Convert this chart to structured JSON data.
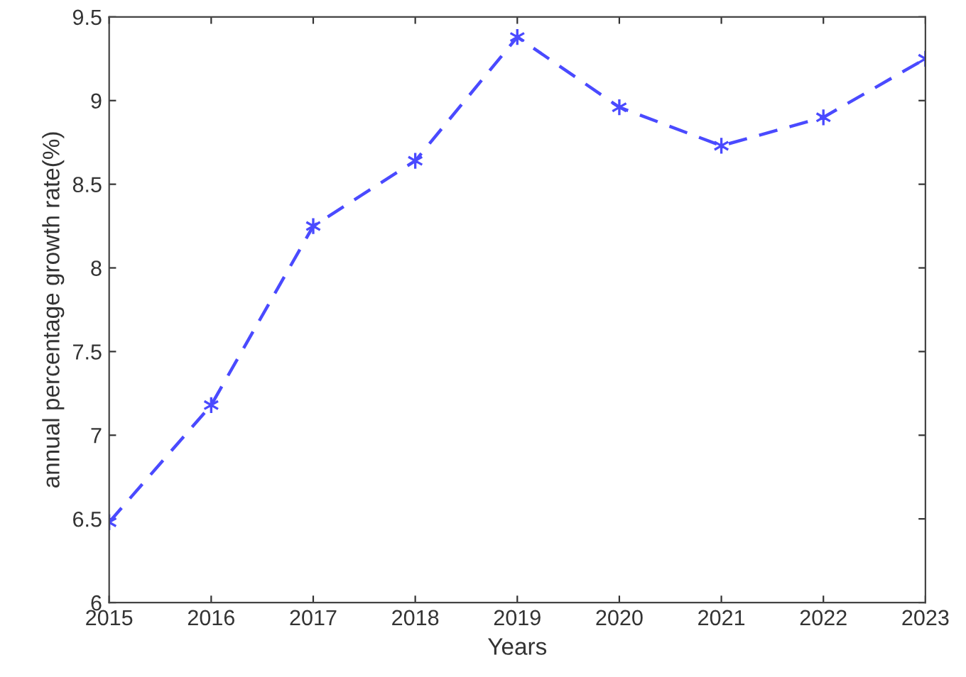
{
  "chart_data": {
    "type": "line",
    "xlabel": "Years",
    "ylabel": "annual percentage growth rate(%)",
    "x": [
      2015,
      2016,
      2017,
      2018,
      2019,
      2020,
      2021,
      2022,
      2023
    ],
    "series": [
      {
        "color": "#4a4aff",
        "values": [
          6.48,
          7.18,
          8.25,
          8.64,
          9.38,
          8.96,
          8.73,
          8.9,
          9.25
        ]
      }
    ],
    "xlim": [
      2015,
      2023
    ],
    "xticks": [
      2015,
      2016,
      2017,
      2018,
      2019,
      2020,
      2021,
      2022,
      2023
    ],
    "ylim": [
      6,
      9.5
    ],
    "yticks": [
      6,
      6.5,
      7,
      7.5,
      8,
      8.5,
      9,
      9.5
    ],
    "grid": false,
    "legend": false,
    "marker": "cross",
    "line_style": "dashed"
  }
}
